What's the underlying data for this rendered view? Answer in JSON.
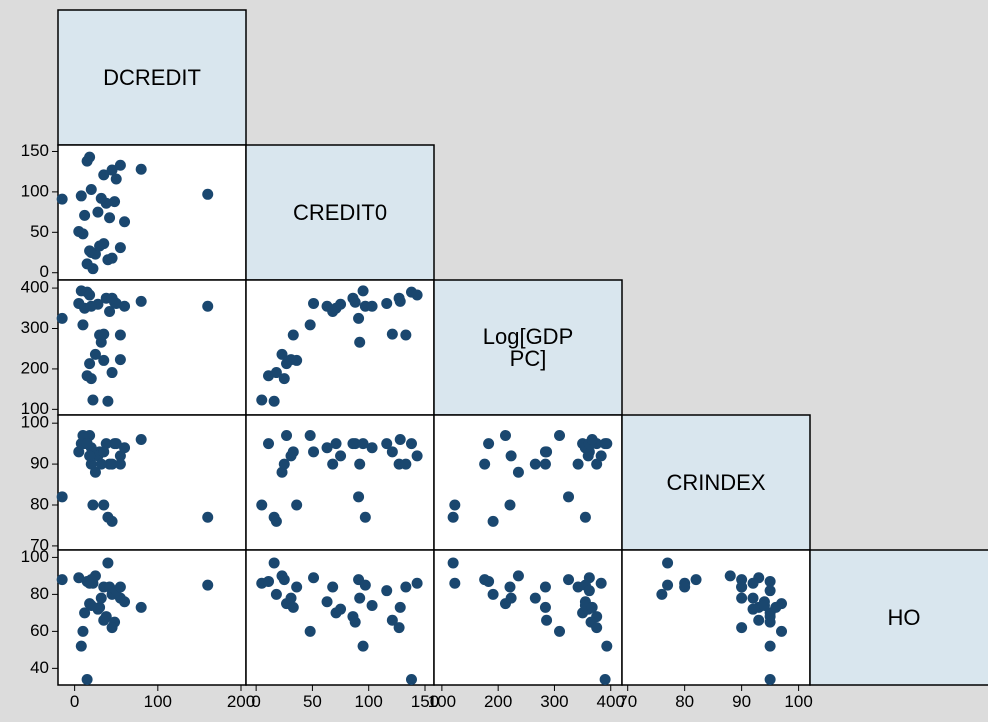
{
  "chart_data": {
    "type": "scatter_matrix",
    "color": "#1a476f",
    "variables": [
      {
        "name": "DCREDIT",
        "lim": [
          -20,
          206
        ],
        "ticks": [
          0,
          100,
          200
        ],
        "values": [
          22,
          40,
          15,
          45,
          25,
          20,
          18,
          55,
          30,
          35,
          10,
          5,
          60,
          42,
          12,
          28,
          38,
          48,
          -15,
          32,
          8,
          160,
          20,
          50,
          35,
          45,
          80,
          55,
          15,
          18
        ]
      },
      {
        "name": "CREDIT0",
        "lim": [
          -9,
          158
        ],
        "ticks": [
          0,
          50,
          100,
          150
        ],
        "values": [
          5,
          16,
          11,
          18,
          23,
          25,
          27,
          31,
          33,
          36,
          48,
          51,
          63,
          68,
          71,
          75,
          86,
          88,
          91,
          92,
          95,
          97,
          103,
          116,
          121,
          127,
          128,
          133,
          138,
          143
        ]
      },
      {
        "name": "Log[GDP PC]",
        "lim": [
          86,
          420
        ],
        "ticks": [
          100,
          200,
          300,
          400
        ],
        "values": [
          123,
          120,
          183,
          191,
          236,
          176,
          213,
          223,
          284,
          221,
          309,
          362,
          355,
          342,
          350,
          360,
          375,
          365,
          325,
          266,
          393,
          355,
          355,
          362,
          286,
          375,
          367,
          284,
          390,
          383
        ]
      },
      {
        "name": "CRINDEX",
        "lim": [
          69,
          102
        ],
        "ticks": [
          70,
          80,
          90,
          100
        ],
        "values": [
          80,
          77,
          95,
          76,
          88,
          90,
          97,
          92,
          93,
          80,
          97,
          93,
          94,
          90,
          95,
          92,
          95,
          95,
          82,
          90,
          95,
          77,
          94,
          95,
          93,
          90,
          96,
          90,
          95,
          92
        ]
      },
      {
        "name": "HO",
        "lim": [
          31,
          104
        ],
        "ticks": [
          40,
          60,
          80,
          100
        ],
        "values": [
          86,
          97,
          87,
          80,
          90,
          88,
          75,
          78,
          73,
          84,
          60,
          89,
          76,
          84,
          70,
          72,
          68,
          65,
          88,
          78,
          52,
          85,
          74,
          82,
          66,
          62,
          73,
          84,
          34,
          86
        ]
      }
    ]
  }
}
